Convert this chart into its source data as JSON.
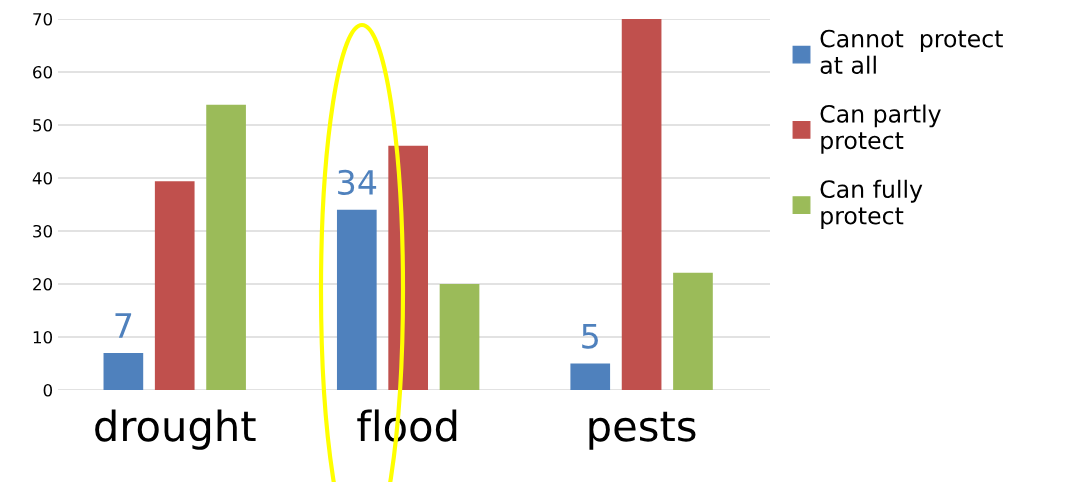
{
  "chart_data": {
    "type": "bar",
    "categories": [
      "drought",
      "flood",
      "pests"
    ],
    "series": [
      {
        "name": "Cannot  protect at all",
        "color": "#4f81bd",
        "values": [
          7,
          34,
          5
        ],
        "value_labels": [
          "7",
          "34",
          "5"
        ]
      },
      {
        "name": "Can partly protect",
        "color": "#c0504d",
        "values": [
          39.4,
          46.1,
          70
        ]
      },
      {
        "name": "Can fully protect",
        "color": "#9bbb59",
        "values": [
          53.8,
          20.0,
          22.1
        ]
      }
    ],
    "ylim": [
      0,
      70
    ],
    "yticks": [
      0,
      10,
      20,
      30,
      40,
      50,
      60,
      70
    ],
    "grid": "y",
    "legend": "right"
  }
}
